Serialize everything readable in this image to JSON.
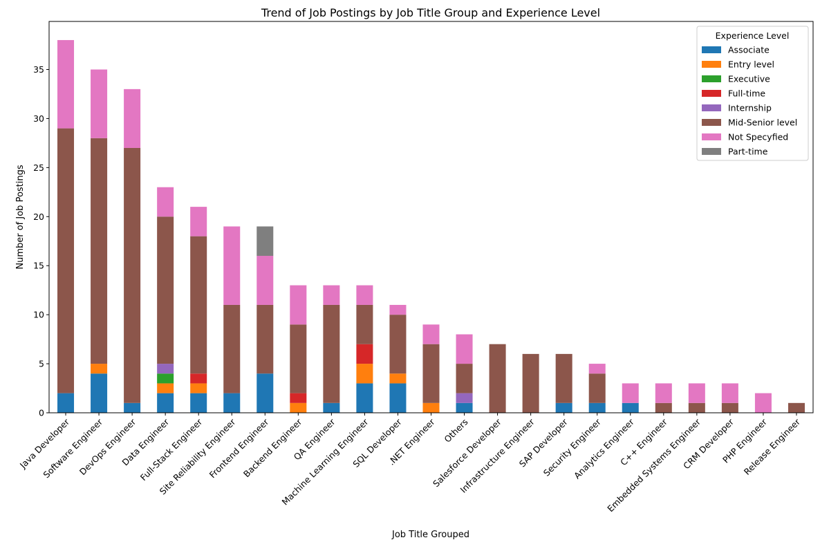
{
  "chart_data": {
    "type": "bar",
    "stacked": true,
    "title": "Trend of Job Postings by Job Title Group and Experience Level",
    "xlabel": "Job Title Grouped",
    "ylabel": "Number of Job Postings",
    "ylim": [
      0,
      39.9
    ],
    "yticks": [
      0,
      5,
      10,
      15,
      20,
      25,
      30,
      35
    ],
    "grid": false,
    "legend": {
      "title": "Experience Level",
      "placement": "top-right"
    },
    "categories": [
      "Java Developer",
      "Software Engineer",
      "DevOps Engineer",
      "Data Engineer",
      "Full-Stack Engineer",
      "Site Reliability Engineer",
      "Frontend Engineer",
      "Backend Engineer",
      "QA Engineer",
      "Machine Learning Engineer",
      "SQL Developer",
      ".NET Engineer",
      "Others",
      "Salesforce Developer",
      "Infrastructure Engineer",
      "SAP Developer",
      "Security Engineer",
      "Analytics Engineer",
      "C++ Engineer",
      "Embedded Systems Engineer",
      "CRM Developer",
      "PHP Engineer",
      "Release Engineer"
    ],
    "series": [
      {
        "name": "Associate",
        "color": "#1f77b4",
        "values": [
          2,
          4,
          1,
          2,
          2,
          2,
          4,
          0,
          1,
          3,
          3,
          0,
          1,
          0,
          0,
          1,
          1,
          1,
          0,
          0,
          0,
          0,
          0
        ]
      },
      {
        "name": "Entry level",
        "color": "#ff7f0e",
        "values": [
          0,
          1,
          0,
          1,
          1,
          0,
          0,
          1,
          0,
          2,
          1,
          1,
          0,
          0,
          0,
          0,
          0,
          0,
          0,
          0,
          0,
          0,
          0
        ]
      },
      {
        "name": "Executive",
        "color": "#2ca02c",
        "values": [
          0,
          0,
          0,
          1,
          0,
          0,
          0,
          0,
          0,
          0,
          0,
          0,
          0,
          0,
          0,
          0,
          0,
          0,
          0,
          0,
          0,
          0,
          0
        ]
      },
      {
        "name": "Full-time",
        "color": "#d62728",
        "values": [
          0,
          0,
          0,
          0,
          1,
          0,
          0,
          1,
          0,
          2,
          0,
          0,
          0,
          0,
          0,
          0,
          0,
          0,
          0,
          0,
          0,
          0,
          0
        ]
      },
      {
        "name": "Internship",
        "color": "#9467bd",
        "values": [
          0,
          0,
          0,
          1,
          0,
          0,
          0,
          0,
          0,
          0,
          0,
          0,
          1,
          0,
          0,
          0,
          0,
          0,
          0,
          0,
          0,
          0,
          0
        ]
      },
      {
        "name": "Mid-Senior level",
        "color": "#8c564b",
        "values": [
          27,
          23,
          26,
          15,
          14,
          9,
          7,
          7,
          10,
          4,
          6,
          6,
          3,
          7,
          6,
          5,
          3,
          0,
          1,
          1,
          1,
          0,
          1
        ]
      },
      {
        "name": "Not Specyfied",
        "color": "#e377c2",
        "values": [
          9,
          7,
          6,
          3,
          3,
          8,
          5,
          4,
          2,
          2,
          1,
          2,
          3,
          0,
          0,
          0,
          1,
          2,
          2,
          2,
          2,
          2,
          0
        ]
      },
      {
        "name": "Part-time",
        "color": "#7f7f7f",
        "values": [
          0,
          0,
          0,
          0,
          0,
          0,
          3,
          0,
          0,
          0,
          0,
          0,
          0,
          0,
          0,
          0,
          0,
          0,
          0,
          0,
          0,
          0,
          0
        ]
      }
    ]
  }
}
